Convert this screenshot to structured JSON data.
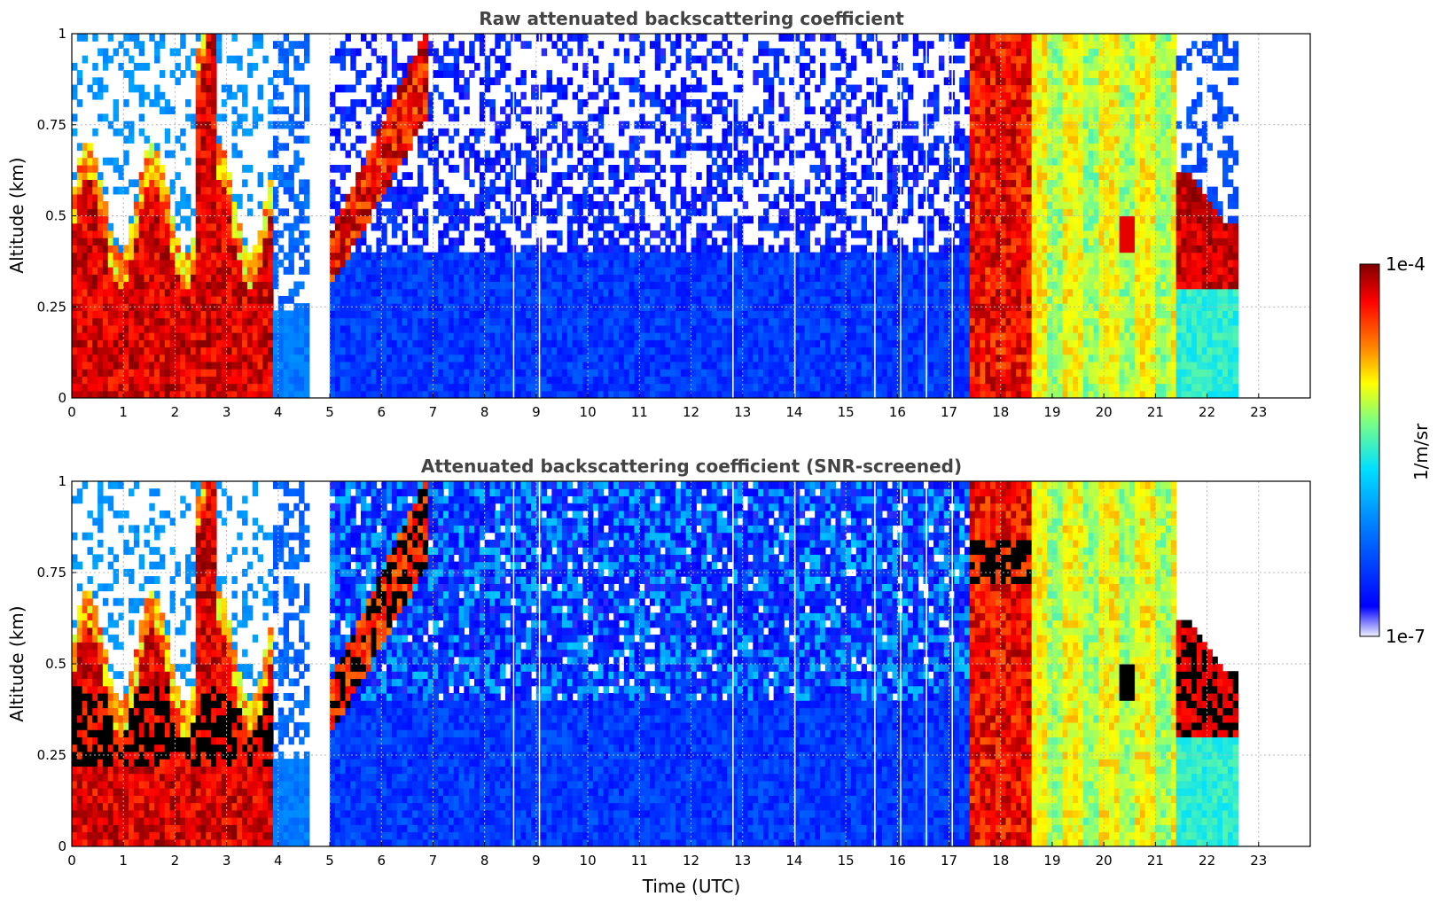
{
  "chart_data": [
    {
      "type": "heatmap",
      "title": "Raw attenuated backscattering coefficient",
      "xlabel": "",
      "ylabel": "Altitude (km)",
      "xlim": [
        0,
        24
      ],
      "ylim": [
        0,
        1
      ],
      "x_ticks": [
        "0",
        "1",
        "2",
        "3",
        "4",
        "5",
        "6",
        "7",
        "8",
        "9",
        "10",
        "11",
        "12",
        "13",
        "14",
        "15",
        "16",
        "17",
        "18",
        "19",
        "20",
        "21",
        "22",
        "23"
      ],
      "y_ticks": [
        "0",
        "0.25",
        "0.5",
        "0.75",
        "1"
      ],
      "grid": true,
      "screened": false,
      "data_gaps_utc": [
        [
          4.6,
          5.05
        ],
        [
          22.65,
          24
        ]
      ],
      "features": [
        {
          "region": "boundary layer aerosol (high backscatter)",
          "t_range": [
            0,
            3.9
          ],
          "alt_range": [
            0,
            0.55
          ],
          "level": "high"
        },
        {
          "region": "elevated plume",
          "t_range": [
            5.1,
            6.8
          ],
          "alt_range": [
            0.3,
            0.9
          ],
          "level": "high"
        },
        {
          "region": "clear / low signal",
          "t_range": [
            5.1,
            17.4
          ],
          "alt_range": [
            0,
            1
          ],
          "level": "low"
        },
        {
          "region": "dense layer",
          "t_range": [
            17.5,
            18.6
          ],
          "alt_range": [
            0,
            1
          ],
          "level": "high"
        },
        {
          "region": "moderate layer",
          "t_range": [
            18.6,
            21.4
          ],
          "alt_range": [
            0,
            1
          ],
          "level": "moderate"
        },
        {
          "region": "aerosol layer top",
          "t_range": [
            21.4,
            22.65
          ],
          "alt_range": [
            0.3,
            0.6
          ],
          "level": "high"
        }
      ]
    },
    {
      "type": "heatmap",
      "title": "Attenuated backscattering coefficient (SNR-screened)",
      "xlabel": "Time (UTC)",
      "ylabel": "Altitude (km)",
      "xlim": [
        0,
        24
      ],
      "ylim": [
        0,
        1
      ],
      "x_ticks": [
        "0",
        "1",
        "2",
        "3",
        "4",
        "5",
        "6",
        "7",
        "8",
        "9",
        "10",
        "11",
        "12",
        "13",
        "14",
        "15",
        "16",
        "17",
        "18",
        "19",
        "20",
        "21",
        "22",
        "23"
      ],
      "y_ticks": [
        "0",
        "0.25",
        "0.5",
        "0.75",
        "1"
      ],
      "grid": true,
      "screened": true,
      "data_gaps_utc": [
        [
          4.6,
          5.05
        ],
        [
          22.65,
          24
        ]
      ],
      "features": [
        {
          "region": "boundary layer aerosol (saturated)",
          "t_range": [
            0,
            3.9
          ],
          "alt_range": [
            0,
            0.55
          ],
          "level": "saturated"
        },
        {
          "region": "clear / low signal",
          "t_range": [
            5.1,
            17.4
          ],
          "alt_range": [
            0,
            1
          ],
          "level": "low"
        },
        {
          "region": "dense layer",
          "t_range": [
            17.5,
            18.6
          ],
          "alt_range": [
            0,
            1
          ],
          "level": "high"
        },
        {
          "region": "aerosol layer top (saturated)",
          "t_range": [
            21.4,
            22.65
          ],
          "alt_range": [
            0.3,
            0.6
          ],
          "level": "saturated"
        }
      ]
    }
  ],
  "colorbar": {
    "label": "1/m/sr",
    "max_label": "1e-4",
    "min_label": "1e-7",
    "colormap": [
      "#f0f0ff",
      "#0000ff",
      "#0080ff",
      "#00e0ff",
      "#80ff80",
      "#ffff00",
      "#ff8000",
      "#ff0000",
      "#800000"
    ]
  }
}
